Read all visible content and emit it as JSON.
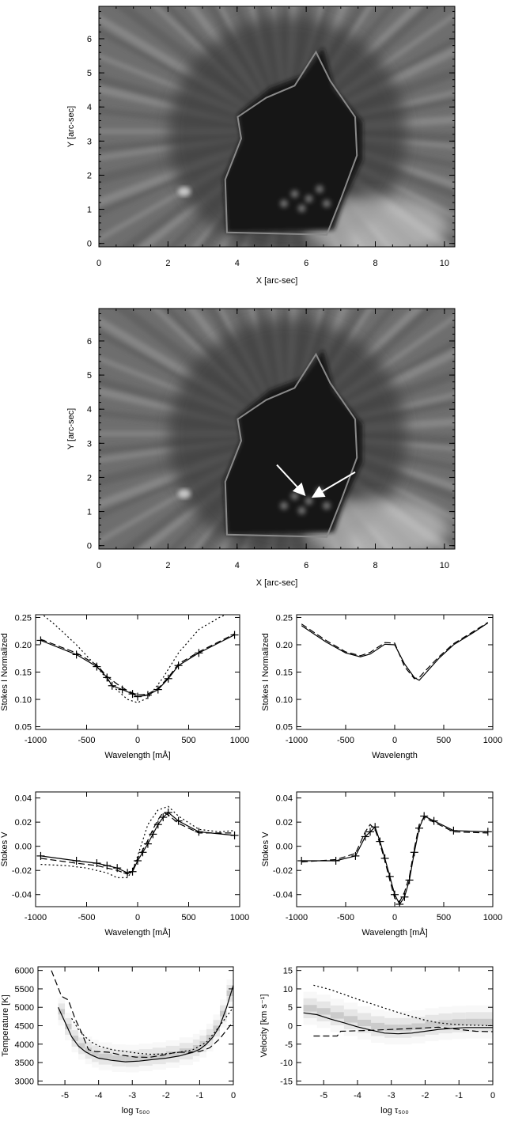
{
  "maps": [
    {
      "xlabel": "X [arc-sec]",
      "ylabel": "Y [arc-sec]",
      "xticks": [
        "0",
        "2",
        "4",
        "6",
        "8",
        "10"
      ],
      "yticks": [
        "0",
        "1",
        "2",
        "3",
        "4",
        "5",
        "6"
      ],
      "xlim": [
        0,
        10.3
      ],
      "ylim": [
        -0.1,
        6.95
      ],
      "arrows": false
    },
    {
      "xlabel": "X [arc-sec]",
      "ylabel": "Y [arc-sec]",
      "xticks": [
        "0",
        "2",
        "4",
        "6",
        "8",
        "10"
      ],
      "yticks": [
        "0",
        "1",
        "2",
        "3",
        "4",
        "5",
        "6"
      ],
      "xlim": [
        0,
        10.3
      ],
      "ylim": [
        -0.1,
        6.95
      ],
      "arrows": true
    }
  ],
  "chart_data": [
    {
      "type": "line",
      "id": "stokesI-left",
      "xlabel": "Wavelength [mÅ]",
      "ylabel": "Stokes I Normalized",
      "xlim": [
        -1000,
        1000
      ],
      "ylim": [
        0.045,
        0.255
      ],
      "xticks": [
        "-1000",
        "-500",
        "0",
        "500",
        "1000"
      ],
      "yticks": [
        "0.05",
        "0.10",
        "0.15",
        "0.20",
        "0.25"
      ],
      "series": [
        {
          "style": "solid-plus",
          "x": [
            -950,
            -600,
            -400,
            -300,
            -250,
            -150,
            -50,
            0,
            100,
            200,
            300,
            400,
            600,
            950
          ],
          "y": [
            0.208,
            0.182,
            0.16,
            0.14,
            0.125,
            0.118,
            0.11,
            0.105,
            0.108,
            0.118,
            0.138,
            0.162,
            0.185,
            0.218
          ]
        },
        {
          "style": "dashed",
          "x": [
            -950,
            -600,
            -400,
            -300,
            -200,
            -100,
            0,
            100,
            200,
            300,
            400,
            600,
            950
          ],
          "y": [
            0.21,
            0.185,
            0.163,
            0.142,
            0.128,
            0.116,
            0.108,
            0.11,
            0.12,
            0.14,
            0.165,
            0.187,
            0.22
          ]
        },
        {
          "style": "dotted",
          "x": [
            -950,
            -800,
            -600,
            -400,
            -250,
            -100,
            0,
            100,
            250,
            400,
            600,
            800,
            950
          ],
          "y": [
            0.258,
            0.235,
            0.2,
            0.16,
            0.125,
            0.1,
            0.094,
            0.103,
            0.14,
            0.185,
            0.228,
            0.25,
            0.262
          ]
        }
      ]
    },
    {
      "type": "line",
      "id": "stokesI-right",
      "xlabel": "Wavelength",
      "ylabel": "Stokes I Normalized",
      "xlim": [
        -1000,
        1000
      ],
      "ylim": [
        0.045,
        0.255
      ],
      "xticks": [
        "-1000",
        "-500",
        "0",
        "500",
        "1000"
      ],
      "yticks": [
        "0.05",
        "0.10",
        "0.15",
        "0.20",
        "0.25"
      ],
      "series": [
        {
          "style": "solid",
          "x": [
            -950,
            -700,
            -500,
            -350,
            -250,
            -100,
            0,
            100,
            200,
            250,
            300,
            450,
            600,
            800,
            950
          ],
          "y": [
            0.235,
            0.205,
            0.185,
            0.178,
            0.183,
            0.201,
            0.2,
            0.165,
            0.14,
            0.135,
            0.145,
            0.175,
            0.2,
            0.222,
            0.24
          ]
        },
        {
          "style": "dashed",
          "x": [
            -950,
            -700,
            -500,
            -350,
            -250,
            -100,
            0,
            100,
            200,
            250,
            300,
            450,
            600,
            800,
            950
          ],
          "y": [
            0.238,
            0.208,
            0.187,
            0.18,
            0.186,
            0.204,
            0.203,
            0.16,
            0.138,
            0.14,
            0.15,
            0.178,
            0.202,
            0.224,
            0.241
          ]
        }
      ]
    },
    {
      "type": "line",
      "id": "stokesV-left",
      "xlabel": "Wavelength [mÅ]",
      "ylabel": "Stokes V",
      "xlim": [
        -1000,
        1000
      ],
      "ylim": [
        -0.05,
        0.045
      ],
      "xticks": [
        "-1000",
        "-500",
        "0",
        "500",
        "1000"
      ],
      "yticks": [
        "-0.04",
        "-0.02",
        "0.00",
        "0.02",
        "0.04"
      ],
      "series": [
        {
          "style": "solid-plus",
          "x": [
            -950,
            -600,
            -400,
            -300,
            -200,
            -100,
            -50,
            0,
            50,
            100,
            150,
            200,
            250,
            300,
            400,
            600,
            950
          ],
          "y": [
            -0.008,
            -0.012,
            -0.014,
            -0.016,
            -0.018,
            -0.022,
            -0.021,
            -0.012,
            -0.005,
            0.002,
            0.01,
            0.018,
            0.024,
            0.028,
            0.021,
            0.012,
            0.009
          ]
        },
        {
          "style": "dashed",
          "x": [
            -950,
            -600,
            -400,
            -300,
            -200,
            -100,
            -50,
            0,
            50,
            100,
            150,
            200,
            250,
            300,
            400,
            600,
            950
          ],
          "y": [
            -0.01,
            -0.014,
            -0.016,
            -0.018,
            -0.02,
            -0.023,
            -0.02,
            -0.01,
            -0.003,
            0.005,
            0.014,
            0.022,
            0.028,
            0.026,
            0.019,
            0.011,
            0.011
          ]
        },
        {
          "style": "dotted",
          "x": [
            -950,
            -700,
            -500,
            -300,
            -200,
            -100,
            -50,
            0,
            50,
            100,
            200,
            300,
            400,
            600,
            800,
            950
          ],
          "y": [
            -0.015,
            -0.016,
            -0.018,
            -0.022,
            -0.026,
            -0.026,
            -0.02,
            -0.008,
            0.005,
            0.018,
            0.03,
            0.033,
            0.025,
            0.014,
            0.012,
            0.013
          ]
        }
      ]
    },
    {
      "type": "line",
      "id": "stokesV-right",
      "xlabel": "Wavelength [mÅ]",
      "ylabel": "Stokes V",
      "xlim": [
        -1000,
        1000
      ],
      "ylim": [
        -0.05,
        0.045
      ],
      "xticks": [
        "-1000",
        "-500",
        "0",
        "500",
        "1000"
      ],
      "yticks": [
        "-0.04",
        "-0.02",
        "0.00",
        "0.02",
        "0.04"
      ],
      "series": [
        {
          "style": "solid-plus",
          "x": [
            -950,
            -600,
            -400,
            -300,
            -250,
            -200,
            -150,
            -100,
            -50,
            0,
            50,
            100,
            150,
            200,
            250,
            300,
            400,
            600,
            950
          ],
          "y": [
            -0.012,
            -0.012,
            -0.008,
            0.008,
            0.012,
            0.016,
            0.004,
            -0.01,
            -0.025,
            -0.04,
            -0.048,
            -0.042,
            -0.028,
            -0.005,
            0.015,
            0.025,
            0.021,
            0.013,
            0.012
          ]
        },
        {
          "style": "dashed",
          "x": [
            -950,
            -600,
            -400,
            -300,
            -250,
            -200,
            -150,
            -100,
            -50,
            0,
            50,
            100,
            150,
            200,
            250,
            300,
            400,
            600,
            950
          ],
          "y": [
            -0.013,
            -0.011,
            -0.006,
            0.012,
            0.018,
            0.014,
            0.002,
            -0.012,
            -0.028,
            -0.043,
            -0.046,
            -0.038,
            -0.025,
            -0.002,
            0.018,
            0.024,
            0.02,
            0.012,
            0.011
          ]
        }
      ]
    },
    {
      "type": "line",
      "id": "temperature",
      "xlabel": "log τ₅₀₀",
      "ylabel": "Temperature [K]",
      "xlim": [
        -5.8,
        0
      ],
      "ylim": [
        2900,
        6100
      ],
      "xticks": [
        "-5",
        "-4",
        "-3",
        "-2",
        "-1",
        "0"
      ],
      "yticks": [
        "3000",
        "3500",
        "4000",
        "4500",
        "5000",
        "5500",
        "6000"
      ],
      "heatmap": true,
      "series": [
        {
          "style": "solid",
          "x": [
            -5.2,
            -5.0,
            -4.8,
            -4.6,
            -4.4,
            -4.2,
            -4.0,
            -3.6,
            -3.2,
            -2.8,
            -2.4,
            -2.0,
            -1.6,
            -1.2,
            -1.0,
            -0.8,
            -0.6,
            -0.4,
            -0.2,
            0.0
          ],
          "y": [
            5000,
            4600,
            4200,
            3950,
            3800,
            3700,
            3620,
            3560,
            3520,
            3540,
            3580,
            3620,
            3680,
            3780,
            3860,
            4000,
            4200,
            4500,
            5000,
            5600
          ]
        },
        {
          "style": "dashed",
          "x": [
            -5.4,
            -5.1,
            -4.9,
            -4.7,
            -4.5,
            -4.3,
            -4.1,
            -3.7,
            -3.3,
            -2.9,
            -2.5,
            -2.1,
            -1.7,
            -1.3,
            -1.0,
            -0.7,
            -0.4,
            -0.1,
            0.0
          ],
          "y": [
            6000,
            5300,
            5200,
            4700,
            4300,
            3850,
            3800,
            3780,
            3700,
            3650,
            3640,
            3700,
            3780,
            3780,
            3800,
            3900,
            4150,
            4500,
            4600
          ]
        },
        {
          "style": "dotted",
          "x": [
            -4.8,
            -4.6,
            -4.4,
            -4.2,
            -4.0,
            -3.6,
            -3.2,
            -2.8,
            -2.4,
            -2.0,
            -1.6,
            -1.2,
            -0.8,
            -0.4,
            0.0
          ],
          "y": [
            4700,
            4400,
            4200,
            4050,
            3950,
            3850,
            3800,
            3750,
            3720,
            3740,
            3780,
            3850,
            4050,
            4500,
            5000
          ]
        }
      ]
    },
    {
      "type": "line",
      "id": "velocity",
      "xlabel": "log τ₅₀₀",
      "ylabel": "Velocity [km s⁻¹]",
      "xlim": [
        -5.8,
        0
      ],
      "ylim": [
        -16,
        16
      ],
      "xticks": [
        "-5",
        "-4",
        "-3",
        "-2",
        "-1",
        "0"
      ],
      "yticks": [
        "-15",
        "-10",
        "-5",
        "0",
        "5",
        "10",
        "15"
      ],
      "heatmap": true,
      "series": [
        {
          "style": "solid",
          "x": [
            -5.6,
            -5.2,
            -4.8,
            -4.4,
            -4.0,
            -3.6,
            -3.2,
            -2.8,
            -2.4,
            -2.0,
            -1.6,
            -1.2,
            -0.8,
            -0.4,
            0.0
          ],
          "y": [
            3.5,
            3.0,
            1.8,
            0.8,
            -0.3,
            -1.2,
            -2.0,
            -2.2,
            -2.0,
            -1.5,
            -1.0,
            -0.7,
            -0.5,
            -0.5,
            -0.5
          ]
        },
        {
          "style": "dashed",
          "x": [
            -5.3,
            -4.6,
            -4.5,
            -3.8,
            -3.0,
            -2.0,
            -1.6,
            -1.0,
            -0.5,
            0.0
          ],
          "y": [
            -2.8,
            -2.8,
            -1.5,
            -1.3,
            -1.0,
            -0.6,
            -0.4,
            -1.0,
            -1.5,
            -1.6
          ]
        },
        {
          "style": "dotted",
          "x": [
            -5.3,
            -4.8,
            -4.4,
            -4.0,
            -3.6,
            -3.2,
            -2.8,
            -2.4,
            -2.0,
            -1.6,
            -1.2,
            -0.8,
            -0.4,
            0.0
          ],
          "y": [
            11.0,
            9.8,
            8.5,
            7.2,
            6.0,
            4.8,
            3.6,
            2.5,
            1.5,
            0.8,
            0.4,
            0.2,
            0.1,
            0.0
          ]
        }
      ]
    }
  ]
}
